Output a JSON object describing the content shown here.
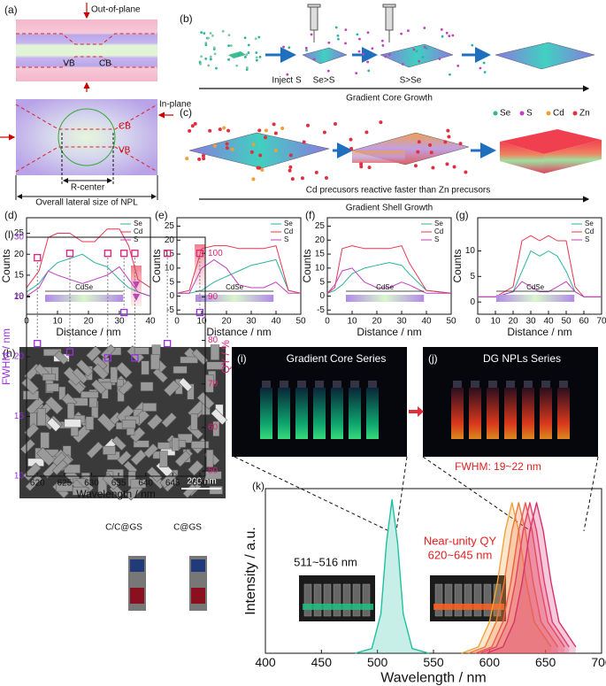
{
  "panels": {
    "a": {
      "label": "(a)",
      "out_of_plane": "Out-of-plane",
      "vb_top": "VB",
      "cb_top": "CB",
      "cb_bottom": "CB",
      "vb_bottom": "VB",
      "in_plane": "In-plane",
      "r_center": "R-center",
      "lateral_size": "Overall lateral size of NPL"
    },
    "b": {
      "label": "(b)",
      "step1": "Inject S",
      "step2": "Se>S",
      "step3": "S>Se",
      "caption": "Gradient Core Growth"
    },
    "c": {
      "label": "(c)",
      "legend": [
        "Se",
        "S",
        "Cd",
        "Zn"
      ],
      "legend_colors": [
        "#2ab3a0",
        "#c040c0",
        "#f0a030",
        "#e03040"
      ],
      "note": "Cd precusors reactive faster than Zn precusors",
      "caption": "Gradient Shell Growth"
    },
    "h": {
      "label": "(h)",
      "scale_bar": "200 nm"
    },
    "i": {
      "label": "(i)",
      "title": "Gradient Core Series"
    },
    "j": {
      "label": "(j)",
      "title": "DG NPLs Series",
      "fwhm": "FWHM: 19~22 nm"
    }
  },
  "chart_data": [
    {
      "type": "line",
      "label": "(d)",
      "xlabel": "Distance / nm",
      "ylabel": "Counts",
      "xlim": [
        0,
        40
      ],
      "ylim": [
        5.7,
        28.7
      ],
      "xticks": [
        0,
        10,
        20,
        30,
        40
      ],
      "yticks": [
        10,
        15,
        20,
        25
      ],
      "legend": "upper right",
      "annotation": "CdSe",
      "x": [
        0,
        4,
        7,
        10,
        14,
        18,
        22,
        26,
        30,
        33,
        36,
        40
      ],
      "series": [
        {
          "name": "Se",
          "color": "#2ab3a0",
          "values": [
            11,
            13,
            16,
            18,
            19,
            20,
            18,
            17,
            14,
            12,
            11,
            10
          ]
        },
        {
          "name": "Cd",
          "color": "#e8374f",
          "values": [
            12,
            16,
            24,
            25,
            25,
            23,
            23,
            26,
            26,
            22,
            14,
            12
          ]
        },
        {
          "name": "S",
          "color": "#c040c0",
          "values": [
            10,
            12,
            16,
            15,
            14,
            13,
            14,
            15,
            17,
            14,
            11,
            10
          ]
        }
      ]
    },
    {
      "type": "line",
      "label": "(e)",
      "xlabel": "Distance / nm",
      "ylabel": "Counts",
      "xlim": [
        0,
        50
      ],
      "ylim": [
        -6.5,
        28
      ],
      "xticks": [
        0,
        10,
        20,
        30,
        40,
        50
      ],
      "yticks": [
        -5,
        0,
        5,
        10,
        15,
        20,
        25
      ],
      "legend": "upper right",
      "annotation": "CdSe",
      "x": [
        0,
        5,
        10,
        15,
        20,
        25,
        30,
        35,
        40,
        45,
        50
      ],
      "series": [
        {
          "name": "Se",
          "color": "#2ab3a0",
          "values": [
            1,
            1,
            2,
            5,
            7,
            9,
            11,
            12,
            13,
            2,
            1
          ]
        },
        {
          "name": "Cd",
          "color": "#e8374f",
          "values": [
            1,
            2,
            17,
            18,
            18,
            17,
            17,
            17,
            18,
            2,
            1
          ]
        },
        {
          "name": "S",
          "color": "#c040c0",
          "values": [
            1,
            1,
            10,
            13,
            10,
            4,
            3,
            3,
            5,
            1,
            1
          ]
        }
      ]
    },
    {
      "type": "line",
      "label": "(f)",
      "xlabel": "Distance / nm",
      "ylabel": "Counts",
      "xlim": [
        0,
        50
      ],
      "ylim": [
        -6.5,
        28
      ],
      "xticks": [
        0,
        10,
        20,
        30,
        40,
        50
      ],
      "yticks": [
        -5,
        0,
        5,
        10,
        15,
        20,
        25
      ],
      "legend": "upper right",
      "annotation": "CdSe",
      "x": [
        0,
        3,
        6,
        10,
        15,
        20,
        25,
        30,
        33,
        40,
        50
      ],
      "series": [
        {
          "name": "Se",
          "color": "#2ab3a0",
          "values": [
            1,
            2,
            4,
            8,
            10,
            11,
            12,
            11,
            8,
            2,
            1
          ]
        },
        {
          "name": "Cd",
          "color": "#e8374f",
          "values": [
            1,
            3,
            17,
            18,
            17,
            17,
            17,
            18,
            12,
            2,
            1
          ]
        },
        {
          "name": "S",
          "color": "#c040c0",
          "values": [
            1,
            4,
            9,
            10,
            5,
            3,
            3,
            5,
            4,
            1,
            1
          ]
        }
      ]
    },
    {
      "type": "line",
      "label": "(g)",
      "xlabel": "Distance / nm",
      "ylabel": "Counts",
      "xlim": [
        0,
        70
      ],
      "ylim": [
        -2.4,
        16.5
      ],
      "xticks": [
        0,
        10,
        20,
        30,
        40,
        50,
        60,
        70
      ],
      "yticks": [
        0,
        5,
        10
      ],
      "legend": "upper right",
      "annotation": "CdSe",
      "x": [
        0,
        10,
        20,
        25,
        30,
        35,
        40,
        45,
        50,
        55,
        60,
        70
      ],
      "series": [
        {
          "name": "Se",
          "color": "#2ab3a0",
          "values": [
            1,
            1,
            2,
            6,
            10,
            9,
            10,
            9,
            6,
            2,
            1,
            1
          ]
        },
        {
          "name": "Cd",
          "color": "#e8374f",
          "values": [
            1,
            1,
            3,
            12,
            13,
            12,
            13,
            12,
            12,
            3,
            1,
            1
          ]
        },
        {
          "name": "S",
          "color": "#c040c0",
          "values": [
            1,
            1,
            2,
            4,
            3,
            2,
            2,
            3,
            4,
            2,
            1,
            1
          ]
        }
      ]
    },
    {
      "type": "scatter",
      "label": "(l)",
      "xlabel": "Wavelength / nm",
      "ylabel": "FWHM / nm",
      "y2label": "QY / %",
      "xlim": [
        618,
        651
      ],
      "ylim": [
        10,
        30
      ],
      "y2lim": [
        48.8,
        103.7
      ],
      "xticks": [
        620,
        625,
        630,
        635,
        640,
        645,
        650
      ],
      "yticks": [
        10,
        15,
        20,
        25,
        30
      ],
      "y2ticks": [
        50,
        60,
        70,
        80,
        90,
        100
      ],
      "annotations": [
        "C/C@GS",
        "C@GS"
      ],
      "x": [
        620,
        626,
        633,
        636,
        638,
        644,
        650
      ],
      "series": [
        {
          "color": "#9b30e0",
          "values": [
            21.1,
            20.4,
            19.9,
            23.7,
            19.9,
            21.1,
            23.7
          ]
        },
        {
          "color": "#e0207a",
          "axis": "y2",
          "values": [
            99,
            100,
            100,
            100,
            100,
            100,
            100
          ]
        }
      ]
    },
    {
      "type": "line",
      "label": "(k)",
      "xlabel": "Wavelength / nm",
      "ylabel": "Intensity / a.u.",
      "xlim": [
        400,
        700
      ],
      "ylim": [
        0,
        1.05
      ],
      "xticks": [
        400,
        450,
        500,
        550,
        600,
        650,
        700
      ],
      "area": true,
      "annotations": [
        "511~516 nm",
        "Near-unity QY",
        "620~645 nm"
      ],
      "series": [
        {
          "color": "#20c0a0",
          "x": [
            480,
            495,
            503,
            508,
            513,
            518,
            523,
            531,
            546
          ],
          "values": [
            0,
            0.03,
            0.25,
            0.7,
            0.98,
            0.7,
            0.25,
            0.03,
            0
          ]
        },
        {
          "color": "#f4a23a",
          "x": [
            575,
            590,
            600,
            607,
            614,
            620,
            626,
            633,
            640,
            655
          ],
          "values": [
            0,
            0.04,
            0.2,
            0.45,
            0.78,
            0.96,
            0.78,
            0.45,
            0.2,
            0.04
          ]
        },
        {
          "color": "#f07840",
          "x": [
            581,
            596,
            606,
            613,
            620,
            626,
            632,
            639,
            646,
            661
          ],
          "values": [
            0,
            0.04,
            0.2,
            0.45,
            0.78,
            0.96,
            0.78,
            0.45,
            0.2,
            0.04
          ]
        },
        {
          "color": "#ea5a50",
          "x": [
            587,
            602,
            612,
            619,
            626,
            632,
            638,
            645,
            652,
            667
          ],
          "values": [
            0,
            0.04,
            0.2,
            0.45,
            0.78,
            0.96,
            0.78,
            0.45,
            0.2,
            0.04
          ]
        },
        {
          "color": "#e2406a",
          "x": [
            591,
            606,
            616,
            623,
            630,
            636,
            642,
            649,
            656,
            671
          ],
          "values": [
            0,
            0.04,
            0.2,
            0.45,
            0.78,
            0.96,
            0.78,
            0.45,
            0.2,
            0.04
          ]
        },
        {
          "color": "#d8306e",
          "x": [
            597,
            612,
            622,
            629,
            636,
            642,
            648,
            655,
            662,
            677
          ],
          "values": [
            0,
            0.04,
            0.2,
            0.45,
            0.78,
            0.96,
            0.78,
            0.45,
            0.2,
            0.04
          ]
        }
      ]
    }
  ]
}
